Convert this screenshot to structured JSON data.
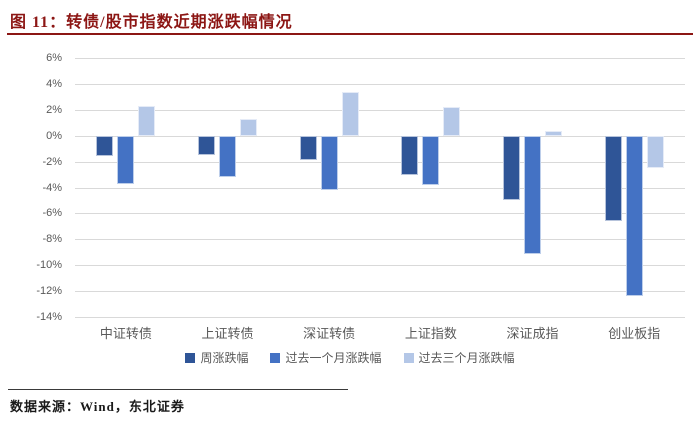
{
  "header": {
    "title": "图  11：转债/股市指数近期涨跌幅情况"
  },
  "footer": {
    "source": "数据来源：Wind，东北证券"
  },
  "colors": {
    "title_red": "#8C1614",
    "grid": "#D9D9D9",
    "axis_text": "#595959",
    "footer_rule": "#3A3A3A"
  },
  "chart_data": {
    "type": "bar",
    "title": "转债/股市指数近期涨跌幅情况",
    "categories": [
      "中证转债",
      "上证转债",
      "深证转债",
      "上证指数",
      "深证成指",
      "创业板指"
    ],
    "series": [
      {
        "name": "周涨跌幅",
        "color": "#2F5597",
        "values": [
          -1.6,
          -1.5,
          -1.9,
          -3.0,
          -5.0,
          -6.6
        ]
      },
      {
        "name": "过去一个月涨跌幅",
        "color": "#4472C4",
        "values": [
          -3.7,
          -3.2,
          -4.2,
          -3.8,
          -9.1,
          -12.4
        ]
      },
      {
        "name": "过去三个月涨跌幅",
        "color": "#B4C7E7",
        "values": [
          2.3,
          1.3,
          3.4,
          2.2,
          0.4,
          -2.5
        ]
      }
    ],
    "xlabel": "",
    "ylabel": "",
    "ylim": [
      -14,
      6
    ],
    "ytick_step": 2,
    "ytick_suffix": "%",
    "grid": true,
    "legend_position": "bottom"
  }
}
